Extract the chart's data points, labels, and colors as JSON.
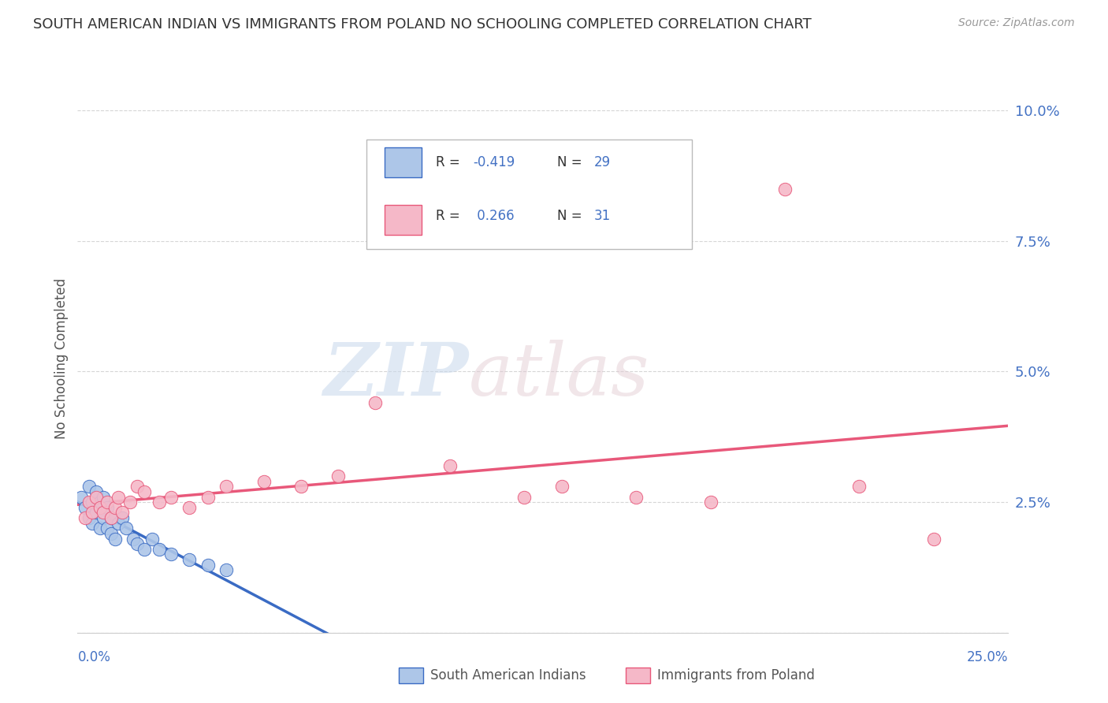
{
  "title": "SOUTH AMERICAN INDIAN VS IMMIGRANTS FROM POLAND NO SCHOOLING COMPLETED CORRELATION CHART",
  "source": "Source: ZipAtlas.com",
  "ylabel": "No Schooling Completed",
  "yticks": [
    0.0,
    0.025,
    0.05,
    0.075,
    0.1
  ],
  "ytick_labels": [
    "",
    "2.5%",
    "5.0%",
    "7.5%",
    "10.0%"
  ],
  "xlim": [
    0.0,
    0.25
  ],
  "ylim": [
    0.0,
    0.105
  ],
  "legend_label1": "South American Indians",
  "legend_label2": "Immigrants from Poland",
  "R1": -0.419,
  "N1": 29,
  "R2": 0.266,
  "N2": 31,
  "color_blue": "#adc6e8",
  "color_pink": "#f5b8c8",
  "line_color_blue": "#3a6bc4",
  "line_color_pink": "#e8587a",
  "blue_scatter_x": [
    0.001,
    0.002,
    0.003,
    0.003,
    0.004,
    0.004,
    0.005,
    0.005,
    0.006,
    0.006,
    0.007,
    0.007,
    0.008,
    0.008,
    0.009,
    0.009,
    0.01,
    0.011,
    0.012,
    0.013,
    0.015,
    0.016,
    0.018,
    0.02,
    0.022,
    0.025,
    0.03,
    0.035,
    0.04
  ],
  "blue_scatter_y": [
    0.026,
    0.024,
    0.022,
    0.028,
    0.021,
    0.025,
    0.023,
    0.027,
    0.02,
    0.025,
    0.022,
    0.026,
    0.024,
    0.02,
    0.019,
    0.022,
    0.018,
    0.021,
    0.022,
    0.02,
    0.018,
    0.017,
    0.016,
    0.018,
    0.016,
    0.015,
    0.014,
    0.013,
    0.012
  ],
  "pink_scatter_x": [
    0.002,
    0.003,
    0.004,
    0.005,
    0.006,
    0.007,
    0.008,
    0.009,
    0.01,
    0.011,
    0.012,
    0.014,
    0.016,
    0.018,
    0.022,
    0.025,
    0.03,
    0.035,
    0.04,
    0.05,
    0.06,
    0.07,
    0.08,
    0.1,
    0.12,
    0.13,
    0.15,
    0.17,
    0.19,
    0.21,
    0.23
  ],
  "pink_scatter_y": [
    0.022,
    0.025,
    0.023,
    0.026,
    0.024,
    0.023,
    0.025,
    0.022,
    0.024,
    0.026,
    0.023,
    0.025,
    0.028,
    0.027,
    0.025,
    0.026,
    0.024,
    0.026,
    0.028,
    0.029,
    0.028,
    0.03,
    0.044,
    0.032,
    0.026,
    0.028,
    0.026,
    0.025,
    0.085,
    0.028,
    0.018
  ],
  "blue_line_x_start": 0.0,
  "blue_line_x_end": 0.135,
  "blue_line_x_dash_end": 0.175,
  "pink_line_x_start": 0.0,
  "pink_line_x_end": 0.25
}
